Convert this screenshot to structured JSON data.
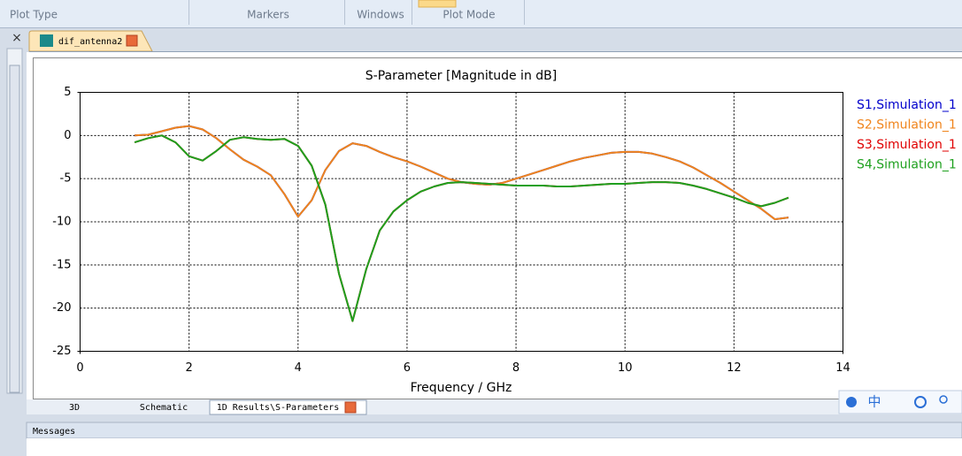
{
  "ribbon": {
    "groups": [
      "Plot Type",
      "Markers",
      "Windows",
      "Plot Mode"
    ]
  },
  "document_tab": "dif_antenna2",
  "chart_data": {
    "type": "line",
    "title": "S-Parameter [Magnitude in dB]",
    "x_label": "Frequency / GHz",
    "x": [
      1.0,
      1.25,
      1.5,
      1.75,
      2.0,
      2.25,
      2.5,
      2.75,
      3.0,
      3.25,
      3.5,
      3.75,
      4.0,
      4.25,
      4.5,
      4.75,
      5.0,
      5.25,
      5.5,
      5.75,
      6.0,
      6.25,
      6.5,
      6.75,
      7.0,
      7.25,
      7.5,
      7.75,
      8.0,
      8.25,
      8.5,
      8.75,
      9.0,
      9.25,
      9.5,
      9.75,
      10.0,
      10.25,
      10.5,
      10.75,
      11.0,
      11.25,
      11.5,
      11.75,
      12.0,
      12.25,
      12.5,
      12.75,
      13.0
    ],
    "series": [
      {
        "name": "S1,Simulation_1",
        "color": "#0000cc",
        "values": [
          0.0,
          0.1,
          0.5,
          0.9,
          1.1,
          0.7,
          -0.3,
          -1.6,
          -2.8,
          -3.6,
          -4.6,
          -6.8,
          -9.4,
          -7.5,
          -4.0,
          -1.8,
          -0.9,
          -1.2,
          -1.9,
          -2.5,
          -3.0,
          -3.6,
          -4.3,
          -5.0,
          -5.4,
          -5.6,
          -5.7,
          -5.5,
          -5.0,
          -4.5,
          -4.0,
          -3.5,
          -3.0,
          -2.6,
          -2.3,
          -2.0,
          -1.9,
          -1.9,
          -2.1,
          -2.5,
          -3.0,
          -3.7,
          -4.6,
          -5.5,
          -6.5,
          -7.5,
          -8.5,
          -9.7,
          -9.5
        ]
      },
      {
        "name": "S2,Simulation_1",
        "color": "#f0841c",
        "values": [
          0.0,
          0.1,
          0.5,
          0.9,
          1.1,
          0.7,
          -0.3,
          -1.6,
          -2.8,
          -3.6,
          -4.6,
          -6.8,
          -9.4,
          -7.5,
          -4.0,
          -1.8,
          -0.9,
          -1.2,
          -1.9,
          -2.5,
          -3.0,
          -3.6,
          -4.3,
          -5.0,
          -5.4,
          -5.6,
          -5.7,
          -5.5,
          -5.0,
          -4.5,
          -4.0,
          -3.5,
          -3.0,
          -2.6,
          -2.3,
          -2.0,
          -1.9,
          -1.9,
          -2.1,
          -2.5,
          -3.0,
          -3.7,
          -4.6,
          -5.5,
          -6.5,
          -7.5,
          -8.5,
          -9.7,
          -9.5
        ]
      },
      {
        "name": "S3,Simulation_1",
        "color": "#e00000",
        "values": [
          -0.8,
          -0.3,
          0.0,
          -0.8,
          -2.4,
          -2.9,
          -1.8,
          -0.5,
          -0.2,
          -0.4,
          -0.5,
          -0.4,
          -1.2,
          -3.5,
          -8.0,
          -16.0,
          -21.5,
          -15.5,
          -11.0,
          -8.8,
          -7.5,
          -6.5,
          -5.9,
          -5.5,
          -5.4,
          -5.5,
          -5.6,
          -5.7,
          -5.8,
          -5.8,
          -5.8,
          -5.9,
          -5.9,
          -5.8,
          -5.7,
          -5.6,
          -5.6,
          -5.5,
          -5.4,
          -5.4,
          -5.5,
          -5.8,
          -6.2,
          -6.7,
          -7.2,
          -7.8,
          -8.2,
          -7.8,
          -7.2
        ]
      },
      {
        "name": "S4,Simulation_1",
        "color": "#1ea01e",
        "values": [
          -0.8,
          -0.3,
          0.0,
          -0.8,
          -2.4,
          -2.9,
          -1.8,
          -0.5,
          -0.2,
          -0.4,
          -0.5,
          -0.4,
          -1.2,
          -3.5,
          -8.0,
          -16.0,
          -21.5,
          -15.5,
          -11.0,
          -8.8,
          -7.5,
          -6.5,
          -5.9,
          -5.5,
          -5.4,
          -5.5,
          -5.6,
          -5.7,
          -5.8,
          -5.8,
          -5.8,
          -5.9,
          -5.9,
          -5.8,
          -5.7,
          -5.6,
          -5.6,
          -5.5,
          -5.4,
          -5.4,
          -5.5,
          -5.8,
          -6.2,
          -6.7,
          -7.2,
          -7.8,
          -8.2,
          -7.8,
          -7.2
        ]
      }
    ],
    "xlim": [
      0,
      14
    ],
    "xticks": [
      0,
      2,
      4,
      6,
      8,
      10,
      12,
      14
    ],
    "ylim": [
      -25,
      5
    ],
    "yticks": [
      -25,
      -20,
      -15,
      -10,
      -5,
      0,
      5
    ],
    "grid": true,
    "legend": "right"
  },
  "bottom_tabs": [
    "3D",
    "Schematic",
    "1D Results\\S-Parameters"
  ],
  "messages_title": "Messages",
  "ime": "中"
}
